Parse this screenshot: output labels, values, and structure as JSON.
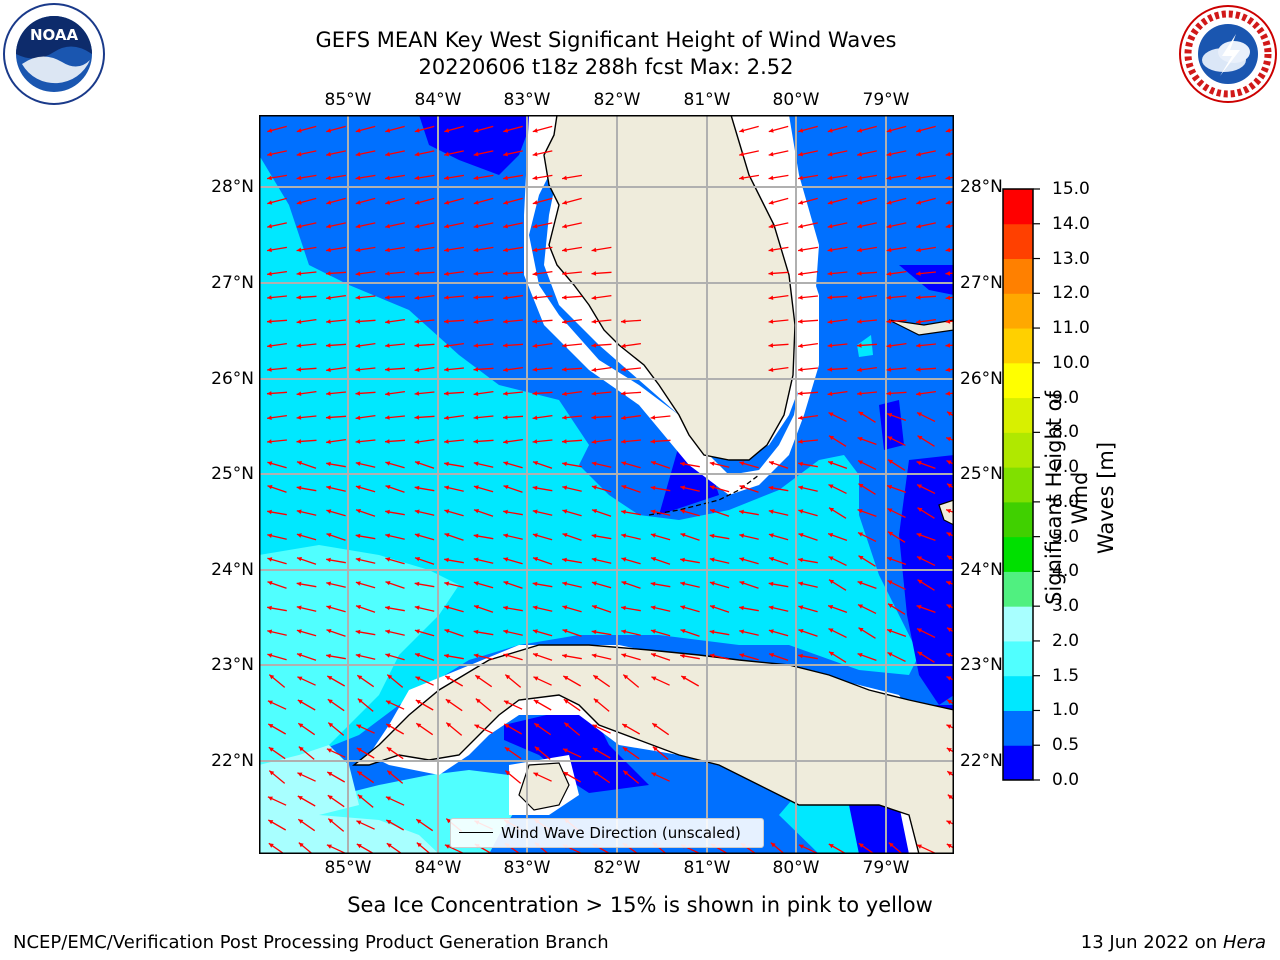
{
  "title": {
    "line1": "GEFS MEAN Key West Significant Height of Wind Waves",
    "line2": "20220606 t18z 288h fcst   Max: 2.52"
  },
  "map": {
    "lon_labels": [
      "85°W",
      "84°W",
      "83°W",
      "82°W",
      "81°W",
      "80°W",
      "79°W"
    ],
    "lat_labels": [
      "28°N",
      "27°N",
      "26°N",
      "25°N",
      "24°N",
      "23°N",
      "22°N"
    ],
    "legend_label": "Wind Wave Direction (unscaled)",
    "land_color": "#efecdc",
    "arrow_color": "#ff0000"
  },
  "colorbar": {
    "label_line1": "Significant Height of Wind",
    "label_line2": "Waves [m]",
    "ticks": [
      "0.0",
      "0.5",
      "1.0",
      "1.5",
      "2.0",
      "3.0",
      "4.0",
      "5.0",
      "6.0",
      "7.0",
      "8.0",
      "9.0",
      "10.0",
      "11.0",
      "12.0",
      "13.0",
      "14.0",
      "15.0"
    ],
    "colors": [
      "#0000ff",
      "#0070ff",
      "#00e8ff",
      "#50ffff",
      "#a8ffff",
      "#50f080",
      "#00e000",
      "#40d000",
      "#80e000",
      "#b0e800",
      "#d8f000",
      "#ffff00",
      "#ffd000",
      "#ffa800",
      "#ff8000",
      "#ff4000",
      "#ff0000"
    ]
  },
  "note": "Sea Ice Concentration > 15% is shown in pink to yellow",
  "footer": {
    "left": "NCEP/EMC/Verification Post Processing Product Generation Branch",
    "right_date": "13 Jun 2022 on ",
    "right_host": "Hera"
  },
  "logos": {
    "noaa": "NOAA",
    "nws": "NATIONAL WEATHER SERVICE"
  }
}
